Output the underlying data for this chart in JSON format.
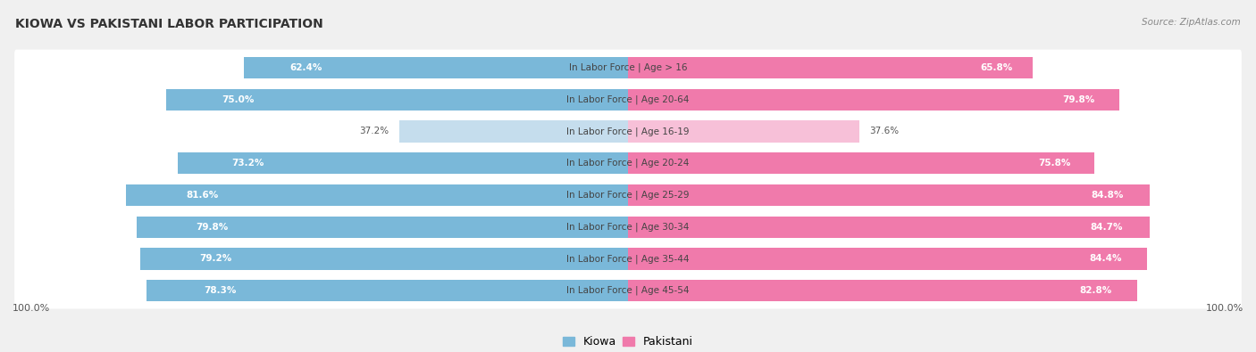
{
  "title": "KIOWA VS PAKISTANI LABOR PARTICIPATION",
  "source": "Source: ZipAtlas.com",
  "categories": [
    "In Labor Force | Age > 16",
    "In Labor Force | Age 20-64",
    "In Labor Force | Age 16-19",
    "In Labor Force | Age 20-24",
    "In Labor Force | Age 25-29",
    "In Labor Force | Age 30-34",
    "In Labor Force | Age 35-44",
    "In Labor Force | Age 45-54"
  ],
  "kiowa_values": [
    62.4,
    75.0,
    37.2,
    73.2,
    81.6,
    79.8,
    79.2,
    78.3
  ],
  "pakistani_values": [
    65.8,
    79.8,
    37.6,
    75.8,
    84.8,
    84.7,
    84.4,
    82.8
  ],
  "kiowa_color": "#7ab8d9",
  "kiowa_color_light": "#c5dded",
  "pakistani_color": "#f07aab",
  "pakistani_color_light": "#f7c0d8",
  "background_color": "#f0f0f0",
  "row_bg": "#ffffff",
  "title_fontsize": 10,
  "bar_height": 0.68,
  "label_fontsize": 7.5,
  "value_fontsize": 7.5,
  "legend_fontsize": 9
}
